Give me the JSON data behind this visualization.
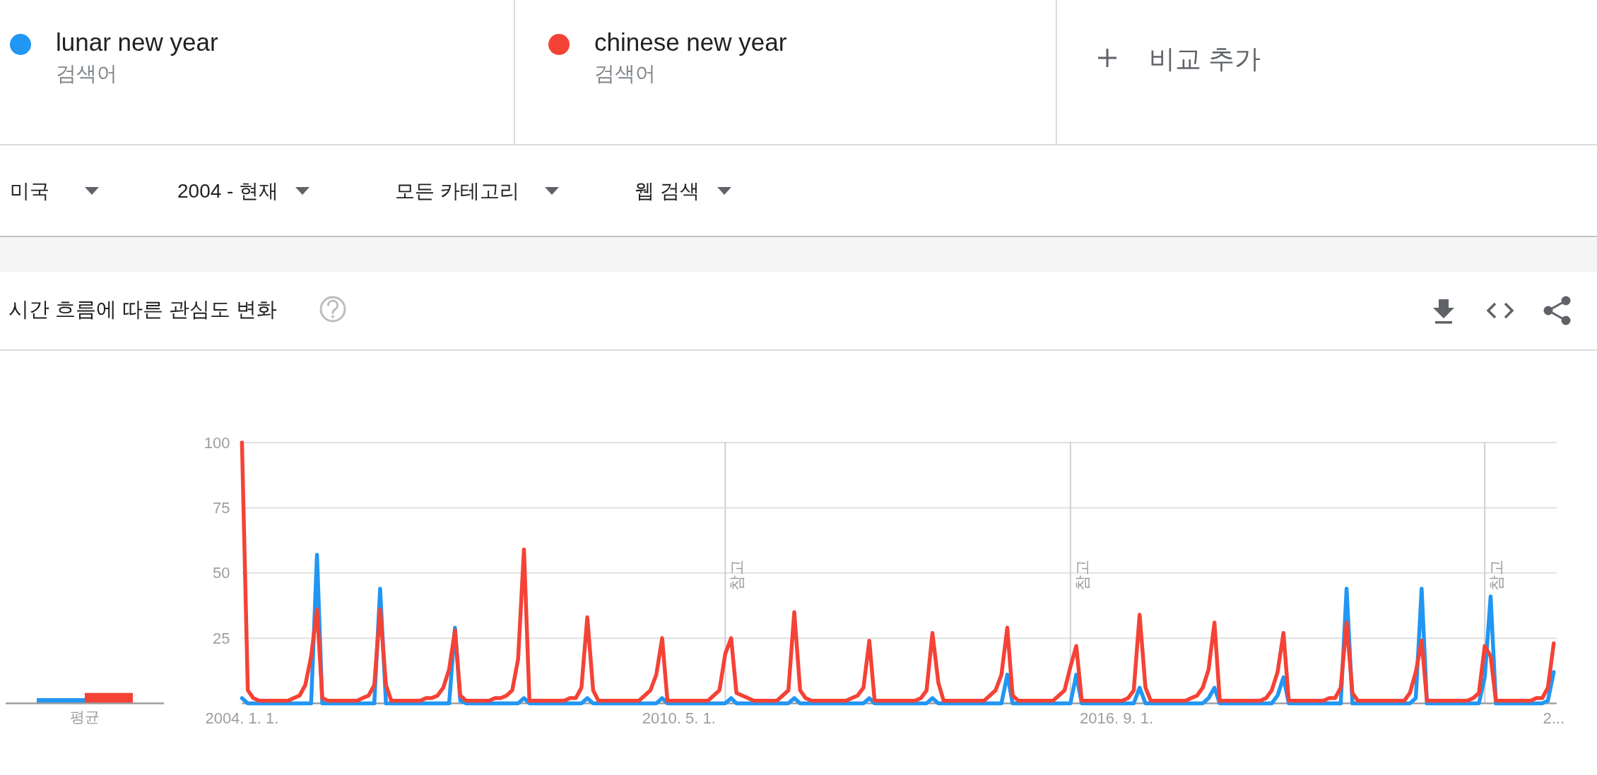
{
  "chart_data": [
    {
      "type": "bar",
      "title": "시간 흐름에 따른 관심도 변화",
      "categories": [
        "평균"
      ],
      "series": [
        {
          "color": "#2196f3",
          "values": [
            2
          ]
        },
        {
          "color": "#f44336",
          "values": [
            4
          ]
        }
      ],
      "ylim": [
        0,
        100
      ],
      "tick_labels": "x"
    },
    {
      "type": "line",
      "annotations": [
        "검색어",
        "검색어",
        "비교 추가",
        "미국",
        "2004 - 현재",
        "모든 카테고리",
        "웹 검색"
      ],
      "series": [
        {
          "name": "lunar new year",
          "color": "#2196f3",
          "x": [
            "2004-01",
            "2004-02",
            "2005-01",
            "2005-02",
            "2005-03",
            "2005-12",
            "2006-01",
            "2006-02",
            "2007-01",
            "2007-02",
            "2007-03",
            "2007-04",
            "2008-01",
            "2008-02",
            "2008-03",
            "2008-12",
            "2009-01",
            "2009-02",
            "2010-01",
            "2010-02",
            "2010-03",
            "2011-01",
            "2011-02",
            "2011-03",
            "2011-12",
            "2012-01",
            "2012-02",
            "2013-01",
            "2013-02",
            "2013-03",
            "2013-12",
            "2014-01",
            "2014-02",
            "2015-01",
            "2015-02",
            "2015-03",
            "2016-01",
            "2016-02",
            "2016-03",
            "2016-12",
            "2017-01",
            "2017-02",
            "2017-12",
            "2018-01",
            "2018-02",
            "2018-03",
            "2018-12",
            "2019-01",
            "2019-02",
            "2019-03",
            "2019-12",
            "2020-01",
            "2020-02",
            "2020-12",
            "2021-01",
            "2021-02",
            "2021-03",
            "2021-12",
            "2022-01",
            "2022-02",
            "2022-03",
            "2022-11",
            "2022-12",
            "2023-01"
          ],
          "values": [
            2,
            0,
            0,
            57,
            0,
            0,
            44,
            0,
            0,
            29,
            1,
            0,
            0,
            2,
            0,
            0,
            2,
            0,
            0,
            2,
            0,
            0,
            2,
            0,
            0,
            2,
            0,
            0,
            2,
            0,
            0,
            2,
            0,
            0,
            11,
            0,
            0,
            11,
            0,
            0,
            6,
            0,
            0,
            2,
            6,
            0,
            0,
            3,
            10,
            0,
            0,
            44,
            0,
            0,
            2,
            44,
            0,
            0,
            10,
            41,
            0,
            0,
            1,
            12
          ]
        },
        {
          "name": "chinese new year",
          "color": "#f44336",
          "x": [
            "2004-01",
            "2004-02",
            "2004-03",
            "2004-04",
            "2004-09",
            "2004-10",
            "2004-11",
            "2004-12",
            "2005-01",
            "2005-02",
            "2005-03",
            "2005-04",
            "2005-09",
            "2005-10",
            "2005-11",
            "2005-12",
            "2006-01",
            "2006-02",
            "2006-03",
            "2006-08",
            "2006-09",
            "2006-10",
            "2006-11",
            "2006-12",
            "2007-01",
            "2007-02",
            "2007-03",
            "2007-04",
            "2007-08",
            "2007-09",
            "2007-10",
            "2007-11",
            "2007-12",
            "2008-01",
            "2008-02",
            "2008-03",
            "2008-09",
            "2008-10",
            "2008-11",
            "2008-12",
            "2009-01",
            "2009-02",
            "2009-03",
            "2009-10",
            "2009-11",
            "2009-12",
            "2010-01",
            "2010-02",
            "2010-03",
            "2010-10",
            "2010-11",
            "2010-12",
            "2011-01",
            "2011-02",
            "2011-03",
            "2011-04",
            "2011-05",
            "2011-06",
            "2011-10",
            "2011-11",
            "2011-12",
            "2012-01",
            "2012-02",
            "2012-03",
            "2012-04",
            "2012-10",
            "2012-11",
            "2012-12",
            "2013-01",
            "2013-02",
            "2013-03",
            "2013-10",
            "2013-11",
            "2013-12",
            "2014-01",
            "2014-02",
            "2014-03",
            "2014-10",
            "2014-11",
            "2014-12",
            "2015-01",
            "2015-02",
            "2015-03",
            "2015-04",
            "2015-10",
            "2015-11",
            "2015-12",
            "2016-01",
            "2016-02",
            "2016-03",
            "2016-10",
            "2016-11",
            "2016-12",
            "2017-01",
            "2017-02",
            "2017-03",
            "2017-09",
            "2017-10",
            "2017-11",
            "2017-12",
            "2018-01",
            "2018-02",
            "2018-03",
            "2018-10",
            "2018-11",
            "2018-12",
            "2019-01",
            "2019-02",
            "2019-03",
            "2019-09",
            "2019-10",
            "2019-11",
            "2019-12",
            "2020-01",
            "2020-02",
            "2020-03",
            "2020-11",
            "2020-12",
            "2021-01",
            "2021-02",
            "2021-03",
            "2021-10",
            "2021-11",
            "2021-12",
            "2022-01",
            "2022-02",
            "2022-03",
            "2022-09",
            "2022-10",
            "2022-11",
            "2022-12",
            "2023-01"
          ],
          "values": [
            100,
            5,
            2,
            1,
            1,
            2,
            3,
            7,
            18,
            36,
            2,
            1,
            1,
            2,
            3,
            7,
            36,
            7,
            1,
            1,
            2,
            2,
            3,
            6,
            13,
            28,
            3,
            1,
            1,
            2,
            2,
            3,
            5,
            17,
            59,
            1,
            1,
            2,
            2,
            6,
            33,
            5,
            1,
            1,
            3,
            5,
            11,
            25,
            1,
            1,
            3,
            5,
            19,
            25,
            4,
            3,
            2,
            1,
            1,
            3,
            5,
            35,
            5,
            2,
            1,
            1,
            2,
            3,
            6,
            24,
            1,
            1,
            2,
            5,
            27,
            8,
            1,
            1,
            3,
            5,
            11,
            29,
            3,
            1,
            1,
            3,
            5,
            14,
            22,
            1,
            1,
            2,
            5,
            34,
            6,
            1,
            1,
            2,
            3,
            6,
            13,
            31,
            1,
            1,
            2,
            5,
            12,
            27,
            1,
            1,
            2,
            2,
            6,
            31,
            4,
            1,
            1,
            4,
            12,
            24,
            1,
            1,
            2,
            4,
            22,
            18,
            1,
            1,
            2,
            2,
            6,
            23
          ]
        }
      ],
      "xlim": [
        "2004-01",
        "2023-01"
      ],
      "xticks": [
        {
          "value": "2004-01",
          "label": "2004. 1. 1."
        },
        {
          "value": "2010-05",
          "label": "2010. 5. 1."
        },
        {
          "value": "2016-09",
          "label": "2016. 9. 1."
        },
        {
          "value": "2023-01",
          "label": "2..."
        }
      ],
      "ylim": [
        0,
        100
      ],
      "yticks": [
        25,
        50,
        75,
        100
      ],
      "grid": "y",
      "legend": "top",
      "ref_lines": [
        {
          "axis": "x",
          "value": "2011-01",
          "label": "참고"
        },
        {
          "axis": "x",
          "value": "2016-01",
          "label": "참고"
        },
        {
          "axis": "x",
          "value": "2022-01",
          "label": "참고"
        }
      ]
    }
  ]
}
